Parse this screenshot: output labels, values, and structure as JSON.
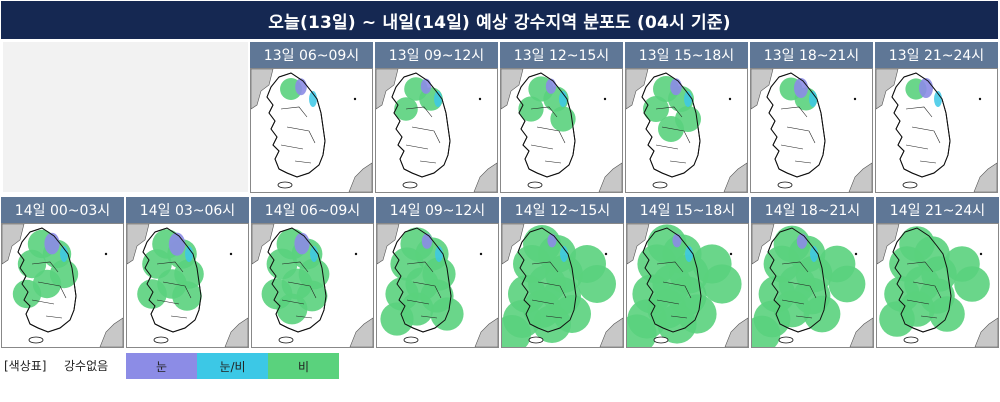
{
  "title": "오늘(13일) ~ 내일(14일) 예상 강수지역 분포도 (04시 기준)",
  "colors": {
    "header_bg": "#152852",
    "panel_header_bg": "#5f7796",
    "snow": "#8c8ce6",
    "snow_rain": "#3cc8e6",
    "rain": "#5ad27d",
    "sea": "#ffffff",
    "foreign_land": "#c8c8c8"
  },
  "panels": [
    {
      "label": "13일 06~09시",
      "rain": 0.08,
      "snow": 0.03
    },
    {
      "label": "13일 09~12시",
      "rain": 0.15,
      "snow": 0.02
    },
    {
      "label": "13일 12~15시",
      "rain": 0.22,
      "snow": 0.02
    },
    {
      "label": "13일 15~18시",
      "rain": 0.25,
      "snow": 0.03
    },
    {
      "label": "13일 18~21시",
      "rain": 0.12,
      "snow": 0.05
    },
    {
      "label": "13일 21~24시",
      "rain": 0.05,
      "snow": 0.05
    },
    {
      "label": "14일 00~03시",
      "rain": 0.35,
      "snow": 0.06
    },
    {
      "label": "14일 03~06시",
      "rain": 0.4,
      "snow": 0.07
    },
    {
      "label": "14일 06~09시",
      "rain": 0.45,
      "snow": 0.06
    },
    {
      "label": "14일 09~12시",
      "rain": 0.55,
      "snow": 0.02
    },
    {
      "label": "14일 12~15시",
      "rain": 0.75,
      "snow": 0.01
    },
    {
      "label": "14일 15~18시",
      "rain": 0.8,
      "snow": 0.01
    },
    {
      "label": "14일 18~21시",
      "rain": 0.7,
      "snow": 0.02
    },
    {
      "label": "14일 21~24시",
      "rain": 0.65,
      "snow": 0.0
    }
  ],
  "legend": {
    "title": "[색상표]",
    "no_precip": "강수없음",
    "items": [
      {
        "label": "눈",
        "color": "#8c8ce6"
      },
      {
        "label": "눈/비",
        "color": "#3cc8e6"
      },
      {
        "label": "비",
        "color": "#5ad27d"
      }
    ]
  }
}
